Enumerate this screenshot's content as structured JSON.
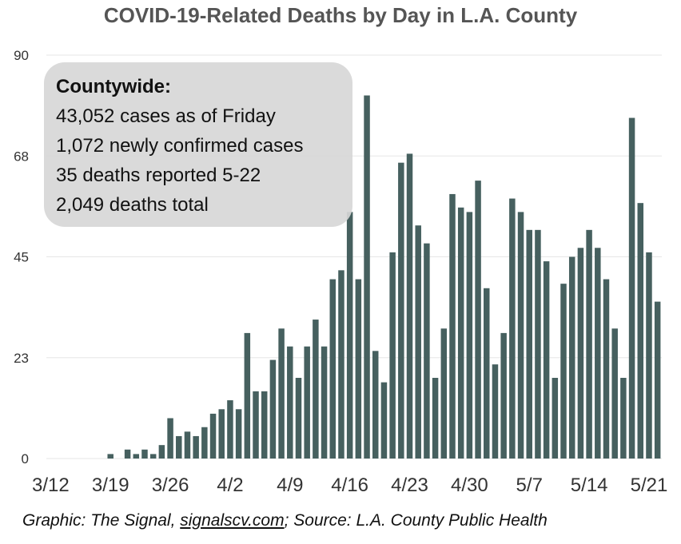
{
  "chart_data": {
    "type": "bar",
    "title": "COVID-19-Related Deaths by Day in L.A. County",
    "ylim": [
      0,
      90
    ],
    "yticks": [
      "0",
      "23",
      "45",
      "68",
      "90"
    ],
    "ytick_values": [
      0,
      22.5,
      45,
      67.5,
      90
    ],
    "grid": true,
    "start_date": "3/12",
    "xtick_labels": [
      "3/12",
      "3/19",
      "3/26",
      "4/2",
      "4/9",
      "4/16",
      "4/23",
      "4/30",
      "5/7",
      "5/14",
      "5/21"
    ],
    "x": [
      "3/12",
      "3/13",
      "3/14",
      "3/15",
      "3/16",
      "3/17",
      "3/18",
      "3/19",
      "3/20",
      "3/21",
      "3/22",
      "3/23",
      "3/24",
      "3/25",
      "3/26",
      "3/27",
      "3/28",
      "3/29",
      "3/30",
      "3/31",
      "4/1",
      "4/2",
      "4/3",
      "4/4",
      "4/5",
      "4/6",
      "4/7",
      "4/8",
      "4/9",
      "4/10",
      "4/11",
      "4/12",
      "4/13",
      "4/14",
      "4/15",
      "4/16",
      "4/17",
      "4/18",
      "4/19",
      "4/20",
      "4/21",
      "4/22",
      "4/23",
      "4/24",
      "4/25",
      "4/26",
      "4/27",
      "4/28",
      "4/29",
      "4/30",
      "5/1",
      "5/2",
      "5/3",
      "5/4",
      "5/5",
      "5/6",
      "5/7",
      "5/8",
      "5/9",
      "5/10",
      "5/11",
      "5/12",
      "5/13",
      "5/14",
      "5/15",
      "5/16",
      "5/17",
      "5/18",
      "5/19",
      "5/20",
      "5/21",
      "5/22"
    ],
    "values": [
      0,
      0,
      0,
      0,
      0,
      0,
      0,
      1,
      0,
      2,
      1,
      2,
      1,
      3,
      9,
      5,
      6,
      5,
      7,
      10,
      11,
      13,
      11,
      28,
      15,
      15,
      22,
      29,
      25,
      18,
      25,
      31,
      25,
      40,
      42,
      55,
      40,
      81,
      24,
      17,
      46,
      66,
      68,
      52,
      48,
      18,
      29,
      59,
      56,
      55,
      62,
      38,
      21,
      28,
      58,
      55,
      51,
      51,
      44,
      18,
      39,
      45,
      47,
      51,
      47,
      40,
      29,
      18,
      76,
      57,
      46,
      35
    ]
  },
  "info_box": {
    "heading": "Countywide:",
    "lines": [
      "43,052 cases as of Friday",
      "1,072 newly confirmed cases",
      "35 deaths reported 5-22",
      "2,049 deaths total"
    ]
  },
  "footer": {
    "prefix": "Graphic: The Signal, ",
    "link": "signalscv.com",
    "suffix": "; Source: L.A. County Public Health"
  },
  "colors": {
    "bar": "#46605f",
    "box": "#d7d7d7"
  }
}
